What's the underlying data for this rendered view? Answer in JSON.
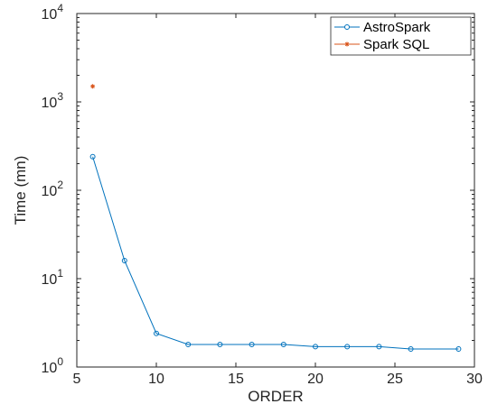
{
  "chart_data": {
    "type": "line",
    "xlabel": "ORDER",
    "ylabel": "Time (mn)",
    "xlim": [
      5,
      30
    ],
    "ylim": [
      1,
      10000
    ],
    "yscale": "log",
    "xticks": [
      "5",
      "10",
      "15",
      "20",
      "25",
      "30"
    ],
    "yticks": [
      {
        "base": "10",
        "exp": "0"
      },
      {
        "base": "10",
        "exp": "1"
      },
      {
        "base": "10",
        "exp": "2"
      },
      {
        "base": "10",
        "exp": "3"
      },
      {
        "base": "10",
        "exp": "4"
      }
    ],
    "grid": false,
    "legend_position": "top-right",
    "series": [
      {
        "name": "AstroSpark",
        "color": "#0072BD",
        "marker": "circle",
        "x": [
          6,
          8,
          10,
          12,
          14,
          16,
          18,
          20,
          22,
          24,
          26,
          29
        ],
        "y": [
          240,
          16,
          2.4,
          1.8,
          1.8,
          1.8,
          1.8,
          1.7,
          1.7,
          1.7,
          1.6,
          1.6
        ]
      },
      {
        "name": "Spark SQL",
        "color": "#D95319",
        "marker": "star",
        "x": [
          6
        ],
        "y": [
          1500
        ]
      }
    ]
  }
}
